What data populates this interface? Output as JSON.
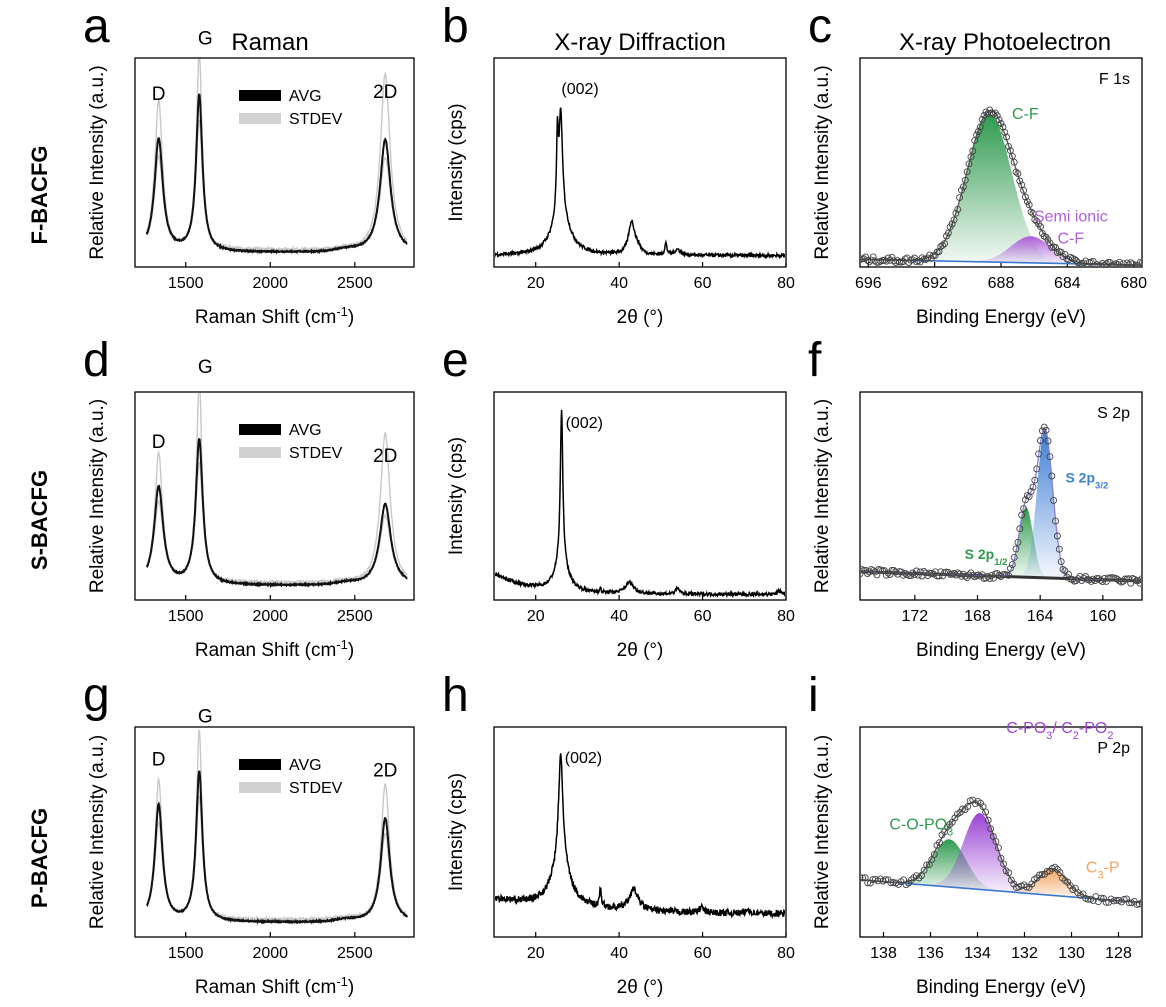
{
  "figure": {
    "column_titles": [
      "Raman",
      "X-ray Diffraction",
      "X-ray Photoelectron"
    ],
    "row_labels": [
      "F-BACFG",
      "S-BACFG",
      "P-BACFG"
    ]
  },
  "chart_data": [
    {
      "panel": "a",
      "kind": "raman",
      "type": "line",
      "title": "Raman",
      "xlabel": "Raman Shift (cm⁻¹)",
      "ylabel": "Relative Intensity (a.u.)",
      "xlim": [
        1200,
        2850
      ],
      "ylim": [
        0,
        1.15
      ],
      "xticks": [
        1500,
        2000,
        2500
      ],
      "legend": [
        "AVG",
        "STDEV"
      ],
      "peaks_avg": [
        {
          "center": 1340,
          "height": 0.62,
          "width": 60,
          "label": "D"
        },
        {
          "center": 1580,
          "height": 0.86,
          "width": 45,
          "label": "G"
        },
        {
          "center": 2680,
          "height": 0.62,
          "width": 75,
          "label": "2D"
        }
      ],
      "peaks_stdev": [
        {
          "center": 1340,
          "height": 0.83,
          "width": 55
        },
        {
          "center": 1580,
          "height": 1.1,
          "width": 40
        },
        {
          "center": 2680,
          "height": 0.98,
          "width": 70
        }
      ]
    },
    {
      "panel": "b",
      "kind": "xrd",
      "type": "line",
      "title": "X-ray Diffraction",
      "xlabel": "2θ (°)",
      "ylabel": "Intensity (cps)",
      "xlim": [
        10,
        80
      ],
      "ylim": [
        0,
        1.1
      ],
      "xticks": [
        20,
        40,
        60,
        80
      ],
      "annotation": "(002)",
      "peaks": [
        {
          "center": 25.2,
          "height": 0.38,
          "width": 0.25
        },
        {
          "center": 26.0,
          "height": 0.52,
          "width": 0.5
        },
        {
          "center": 26.0,
          "height": 0.22,
          "width": 2.5
        },
        {
          "center": 43.0,
          "height": 0.17,
          "width": 0.9
        },
        {
          "center": 44.5,
          "height": 0.03,
          "width": 0.9
        },
        {
          "center": 51.2,
          "height": 0.06,
          "width": 0.3
        },
        {
          "center": 54.0,
          "height": 0.03,
          "width": 0.8
        }
      ],
      "baseline": 0.06
    },
    {
      "panel": "c",
      "kind": "xps",
      "type": "line",
      "title": "X-ray Photoelectron",
      "region": "F 1s",
      "xlabel": "Binding Energy (eV)",
      "ylabel": "Relative Intensity (a.u.)",
      "xlim": [
        696.5,
        679.5
      ],
      "ylim": [
        0,
        1.1
      ],
      "xticks": [
        696,
        692,
        688,
        684,
        680
      ],
      "baseline": [
        0.04,
        0.01
      ],
      "components": [
        {
          "name": "C-F",
          "center": 688.7,
          "height": 0.78,
          "width": 1.35,
          "color": "#2e9a4e"
        },
        {
          "name": "Semi ionic\nC-F",
          "center": 686.2,
          "height": 0.14,
          "width": 1.2,
          "color": "#b060dc"
        }
      ]
    },
    {
      "panel": "d",
      "kind": "raman",
      "type": "line",
      "title": "Raman",
      "xlabel": "Raman Shift (cm⁻¹)",
      "ylabel": "Relative Intensity (a.u.)",
      "xlim": [
        1200,
        2850
      ],
      "ylim": [
        0,
        1.15
      ],
      "xticks": [
        1500,
        2000,
        2500
      ],
      "legend": [
        "AVG",
        "STDEV"
      ],
      "peaks_avg": [
        {
          "center": 1340,
          "height": 0.54,
          "width": 65,
          "label": "D"
        },
        {
          "center": 1580,
          "height": 0.8,
          "width": 50,
          "label": "G"
        },
        {
          "center": 2680,
          "height": 0.45,
          "width": 80,
          "label": "2D"
        }
      ],
      "peaks_stdev": [
        {
          "center": 1340,
          "height": 0.73,
          "width": 55
        },
        {
          "center": 1580,
          "height": 1.13,
          "width": 40
        },
        {
          "center": 2680,
          "height": 0.84,
          "width": 70
        }
      ]
    },
    {
      "panel": "e",
      "kind": "xrd",
      "type": "line",
      "title": "X-ray Diffraction",
      "xlabel": "2θ (°)",
      "ylabel": "Intensity (cps)",
      "xlim": [
        10,
        80
      ],
      "ylim": [
        0,
        1.1
      ],
      "xticks": [
        20,
        40,
        60,
        80
      ],
      "annotation": "(002)",
      "peaks": [
        {
          "center": 26.2,
          "height": 0.8,
          "width": 0.35
        },
        {
          "center": 26.2,
          "height": 0.16,
          "width": 1.8
        },
        {
          "center": 42.5,
          "height": 0.06,
          "width": 1.2
        },
        {
          "center": 35.5,
          "height": 0.02,
          "width": 0.2
        },
        {
          "center": 54.0,
          "height": 0.03,
          "width": 0.6
        },
        {
          "center": 78.5,
          "height": 0.02,
          "width": 0.5
        }
      ],
      "decay": {
        "amplitude": 0.11,
        "rate": 0.12,
        "offset": 10
      },
      "baseline": 0.03
    },
    {
      "panel": "f",
      "kind": "xps",
      "type": "line",
      "title": "X-ray Photoelectron",
      "region": "S 2p",
      "xlabel": "Binding Energy (eV)",
      "ylabel": "Relative Intensity (a.u.)",
      "xlim": [
        175.5,
        157.5
      ],
      "ylim": [
        0,
        1.1
      ],
      "xticks": [
        172,
        168,
        164,
        160
      ],
      "baseline": [
        0.15,
        0.1
      ],
      "components": [
        {
          "name": "S 2p",
          "sub": "1/2",
          "center": 164.9,
          "height": 0.37,
          "width": 0.45,
          "color": "#2e9a4e"
        },
        {
          "name": "S 2p",
          "sub": "3/2",
          "center": 163.7,
          "height": 0.78,
          "width": 0.5,
          "color": "#3f7fd6"
        }
      ]
    },
    {
      "panel": "g",
      "kind": "raman",
      "type": "line",
      "title": "Raman",
      "xlabel": "Raman Shift (cm⁻¹)",
      "ylabel": "Relative Intensity (a.u.)",
      "xlim": [
        1200,
        2850
      ],
      "ylim": [
        0,
        1.15
      ],
      "xticks": [
        1500,
        2000,
        2500
      ],
      "legend": [
        "AVG",
        "STDEV"
      ],
      "peaks_avg": [
        {
          "center": 1340,
          "height": 0.64,
          "width": 55,
          "label": "D"
        },
        {
          "center": 1580,
          "height": 0.82,
          "width": 45,
          "label": "G"
        },
        {
          "center": 2680,
          "height": 0.57,
          "width": 65,
          "label": "2D"
        }
      ],
      "peaks_stdev": [
        {
          "center": 1340,
          "height": 0.78,
          "width": 50
        },
        {
          "center": 1580,
          "height": 1.05,
          "width": 40
        },
        {
          "center": 2680,
          "height": 0.76,
          "width": 60
        }
      ]
    },
    {
      "panel": "h",
      "kind": "xrd",
      "type": "line",
      "title": "X-ray Diffraction",
      "xlabel": "2θ (°)",
      "ylabel": "Intensity (cps)",
      "xlim": [
        10,
        80
      ],
      "ylim": [
        0,
        1.1
      ],
      "xticks": [
        20,
        40,
        60,
        80
      ],
      "annotation": "(002)",
      "peaks": [
        {
          "center": 26.0,
          "height": 0.55,
          "width": 0.6
        },
        {
          "center": 26.0,
          "height": 0.25,
          "width": 2.5
        },
        {
          "center": 35.5,
          "height": 0.09,
          "width": 0.3
        },
        {
          "center": 43.5,
          "height": 0.11,
          "width": 1.3
        },
        {
          "center": 59.7,
          "height": 0.03,
          "width": 0.5
        },
        {
          "center": 71.0,
          "height": 0.02,
          "width": 0.5
        }
      ],
      "decay": {
        "amplitude": 0.08,
        "rate": 0.05,
        "offset": 10
      },
      "baseline": 0.12
    },
    {
      "panel": "i",
      "kind": "xps",
      "type": "line",
      "title": "X-ray Photoelectron",
      "region": "P 2p",
      "xlabel": "Binding Energy (eV)",
      "ylabel": "Relative Intensity (a.u.)",
      "xlim": [
        139,
        127
      ],
      "ylim": [
        0,
        1.1
      ],
      "xticks": [
        138,
        136,
        134,
        132,
        130,
        128
      ],
      "baseline": [
        0.3,
        0.18
      ],
      "components": [
        {
          "name": "C-O-PO",
          "sub": "3",
          "center": 135.2,
          "height": 0.25,
          "width": 0.7,
          "color": "#2e9a4e"
        },
        {
          "name": "C-PO",
          "sub": "3",
          "tail": "/ C",
          "sub2": "2",
          "tail2": "-PO",
          "sub3": "2",
          "center": 133.9,
          "height": 0.4,
          "width": 0.7,
          "color": "#9a45d4"
        },
        {
          "name": "C",
          "sub": "3",
          "tail": "-P",
          "center": 130.8,
          "height": 0.14,
          "width": 0.6,
          "color": "#f5a45e"
        }
      ]
    }
  ]
}
